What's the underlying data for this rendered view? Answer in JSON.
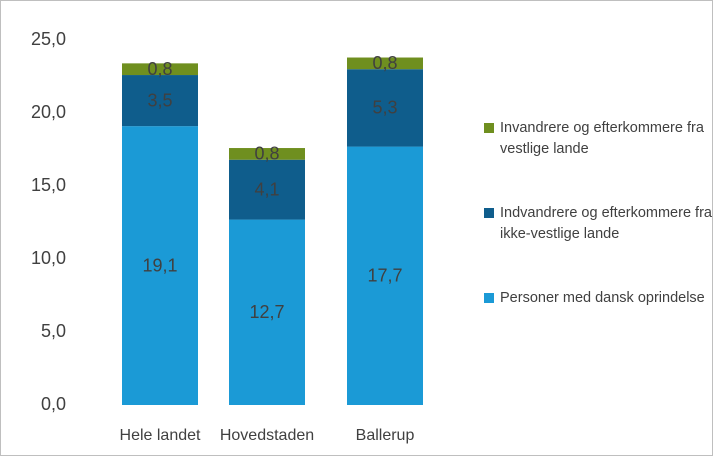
{
  "chart_data": {
    "type": "stacked_bar",
    "categories": [
      "Hele landet",
      "Hovedstaden",
      "Ballerup"
    ],
    "series": [
      {
        "name": "Personer med dansk oprindelse",
        "color": "#1b9ad6",
        "values": [
          19.1,
          12.7,
          17.7
        ],
        "value_labels": [
          "19,1",
          "12,7",
          "17,7"
        ]
      },
      {
        "name": "Indvandrere og efterkommere fra ikke-vestlige lande",
        "color": "#0f5d8c",
        "values": [
          3.5,
          4.1,
          5.3
        ],
        "value_labels": [
          "3,5",
          "4,1",
          "5,3"
        ]
      },
      {
        "name": "Invandrere og efterkommere fra vestlige lande",
        "color": "#6f8f1f",
        "values": [
          0.8,
          0.8,
          0.8
        ],
        "value_labels": [
          "0,8",
          "0,8",
          "0,8"
        ]
      }
    ],
    "ylim": [
      0,
      25
    ],
    "yticks": [
      {
        "value": 0,
        "label": "0,0"
      },
      {
        "value": 5,
        "label": "5,0"
      },
      {
        "value": 10,
        "label": "10,0"
      },
      {
        "value": 15,
        "label": "15,0"
      },
      {
        "value": 20,
        "label": "20,0"
      },
      {
        "value": 25,
        "label": "25,0"
      }
    ],
    "legend": "right"
  }
}
